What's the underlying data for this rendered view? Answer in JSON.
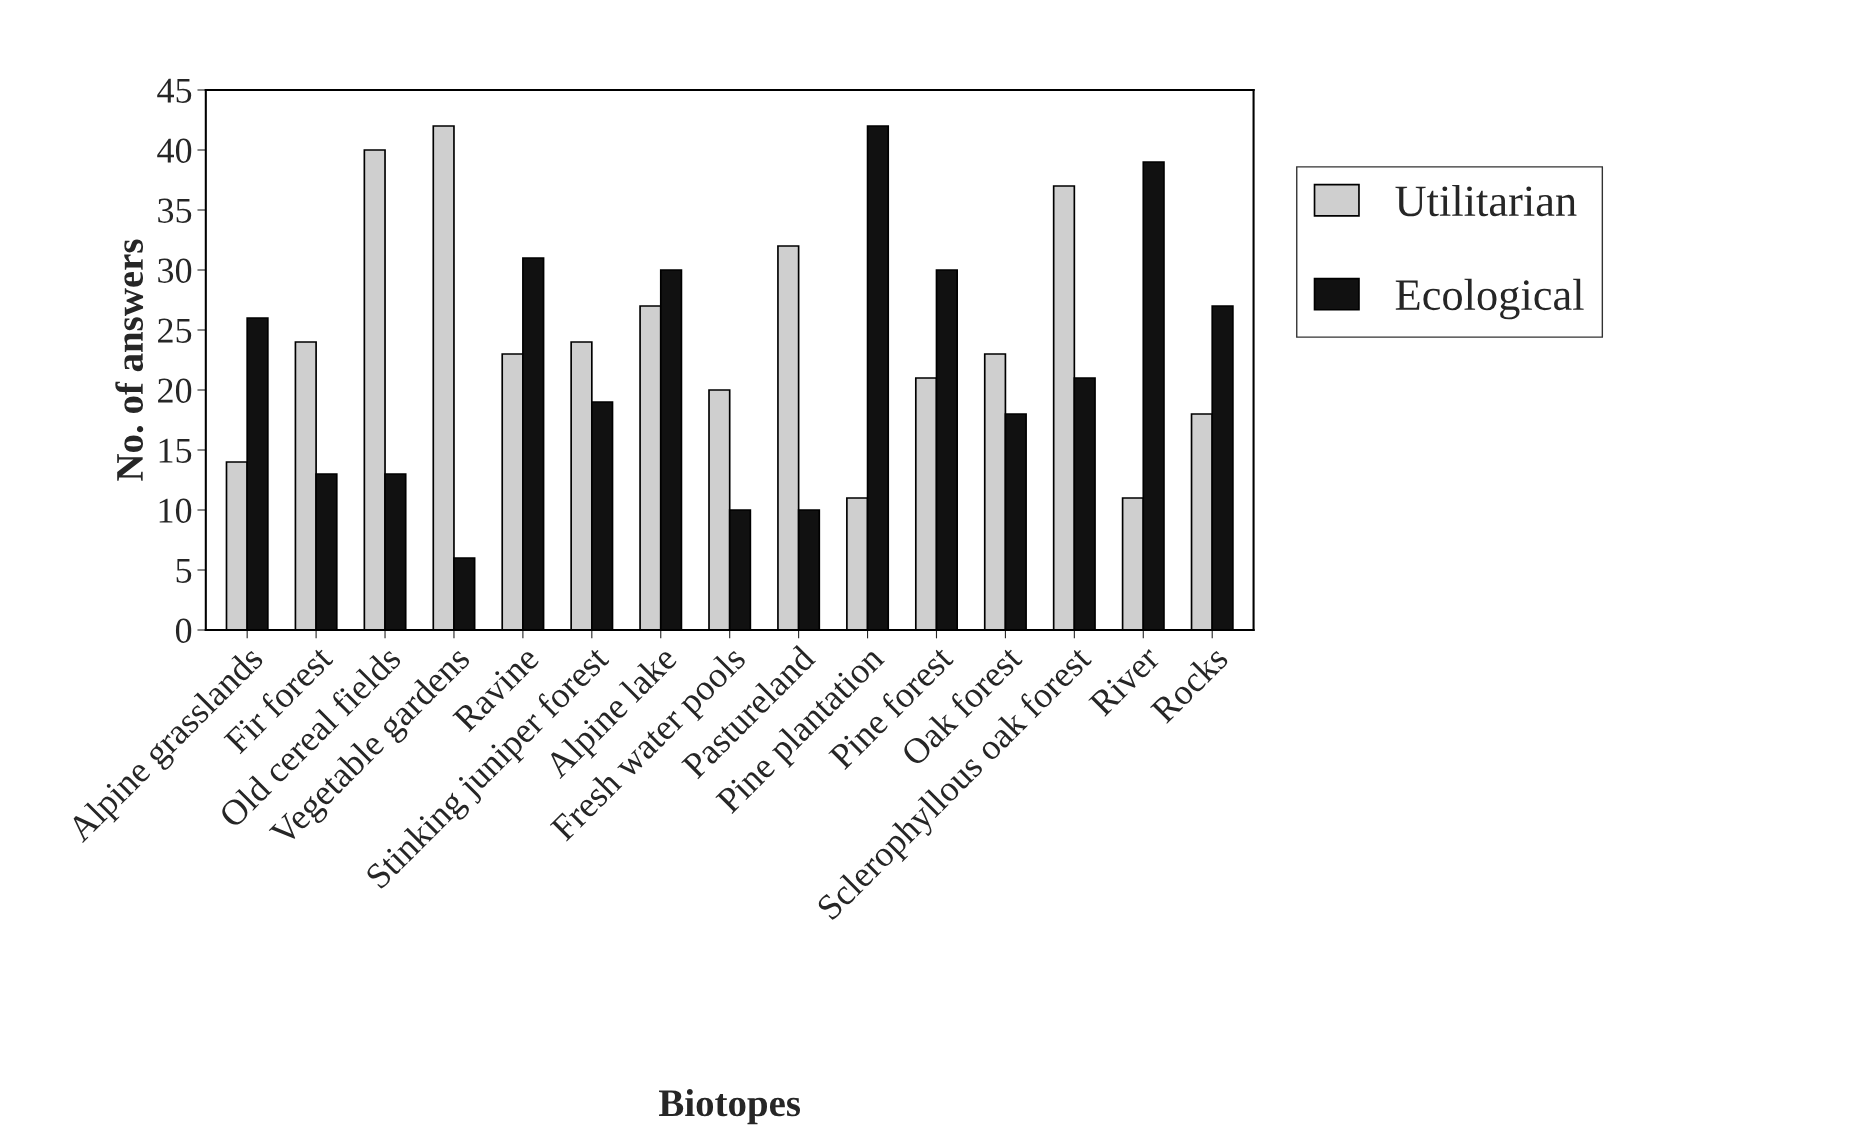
{
  "chart_data": {
    "type": "bar",
    "xlabel": "Biotopes",
    "ylabel": "No. of answers",
    "categories": [
      "Alpine grasslands",
      "Fir forest",
      "Old cereal fields",
      "Vegetable gardens",
      "Ravine",
      "Stinking juniper forest",
      "Alpine lake",
      "Fresh water pools",
      "Pastureland",
      "Pine plantation",
      "Pine forest",
      "Oak forest",
      "Sclerophyllous oak forest",
      "River",
      "Rocks"
    ],
    "series": [
      {
        "name": "Utilitarian",
        "color": "#cfcfcf",
        "values": [
          14,
          24,
          40,
          42,
          23,
          24,
          27,
          20,
          32,
          11,
          21,
          23,
          37,
          11,
          18
        ]
      },
      {
        "name": "Ecological",
        "color": "#111111",
        "values": [
          26,
          13,
          13,
          6,
          31,
          19,
          30,
          10,
          10,
          42,
          30,
          18,
          21,
          39,
          27
        ]
      }
    ],
    "ylim": [
      0,
      45
    ],
    "yticks": [
      0,
      5,
      10,
      15,
      20,
      25,
      30,
      35,
      40,
      45
    ],
    "grid": false,
    "legend": "right"
  }
}
